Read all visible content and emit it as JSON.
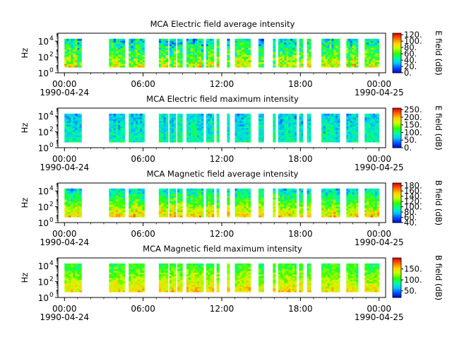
{
  "time_axis": {
    "tick_labels": [
      "00:00",
      "06:00",
      "12:00",
      "18:00",
      "00:00"
    ],
    "tick_hours": [
      0,
      6,
      12,
      18,
      24
    ],
    "date_labels": [
      "1990-04-24",
      "1990-04-25"
    ],
    "minor_tick_hours": [
      1,
      2,
      3,
      4,
      5,
      7,
      8,
      9,
      10,
      11,
      13,
      14,
      15,
      16,
      17,
      19,
      20,
      21,
      22,
      23
    ],
    "start_hour": -0.5,
    "end_hour": 24.5
  },
  "colors": {
    "colormap": [
      "#0000c8",
      "#0050ff",
      "#00c8ff",
      "#00ff96",
      "#32ff00",
      "#c8ff00",
      "#ffd200",
      "#ff6400",
      "#d70000"
    ],
    "axis": "#000000",
    "background": "#ffffff"
  },
  "chart_data": [
    {
      "type": "heatmap",
      "title": "MCA  Electric field average intensity",
      "ylabel": "Hz",
      "y_scale": "log",
      "y_ticks": [
        1,
        100,
        10000
      ],
      "y_tick_labels": [
        "10",
        "10",
        "10"
      ],
      "y_tick_exponents": [
        "0",
        "2",
        "4"
      ],
      "ylim": [
        1,
        100000
      ],
      "data_freq_range": [
        5,
        20000
      ],
      "colorbar": {
        "label": "E field (dB)",
        "range": [
          0,
          125
        ],
        "ticks": [
          0,
          20,
          40,
          60,
          80,
          100,
          120
        ],
        "tick_labels": [
          "0.",
          "20.",
          "40.",
          "60.",
          "80.",
          "100.",
          "120."
        ]
      },
      "data_intervals_hours": [
        [
          0.0,
          1.3
        ],
        [
          3.4,
          4.6
        ],
        [
          4.9,
          6.1
        ],
        [
          7.2,
          7.9
        ],
        [
          8.0,
          8.5
        ],
        [
          8.6,
          9.0
        ],
        [
          9.3,
          10.6
        ],
        [
          10.8,
          11.4
        ],
        [
          11.6,
          11.8
        ],
        [
          12.4,
          12.6
        ],
        [
          13.0,
          14.2
        ],
        [
          14.8,
          15.2
        ],
        [
          15.9,
          16.1
        ],
        [
          16.3,
          17.7
        ],
        [
          17.9,
          18.2
        ],
        [
          18.5,
          18.8
        ],
        [
          19.6,
          21.0
        ],
        [
          21.5,
          22.4
        ],
        [
          22.9,
          24.0
        ]
      ],
      "intensity_profile": {
        "low_freq": 78,
        "high_freq": 38,
        "variation": 22
      }
    },
    {
      "type": "heatmap",
      "title": "MCA  Electric field maximum intensity",
      "ylabel": "Hz",
      "y_scale": "log",
      "y_ticks": [
        1,
        100,
        10000
      ],
      "y_tick_labels": [
        "10",
        "10",
        "10"
      ],
      "y_tick_exponents": [
        "0",
        "2",
        "4"
      ],
      "ylim": [
        1,
        100000
      ],
      "data_freq_range": [
        5,
        20000
      ],
      "colorbar": {
        "label": "E field (dB)",
        "range": [
          0,
          260
        ],
        "ticks": [
          0,
          50,
          100,
          150,
          200,
          250
        ],
        "tick_labels": [
          "0.",
          "50.",
          "100.",
          "150.",
          "200.",
          "250."
        ]
      },
      "data_intervals_hours": [
        [
          0.0,
          1.3
        ],
        [
          3.4,
          4.6
        ],
        [
          4.9,
          6.1
        ],
        [
          7.2,
          7.9
        ],
        [
          8.0,
          8.5
        ],
        [
          8.6,
          9.0
        ],
        [
          9.3,
          10.6
        ],
        [
          10.8,
          11.4
        ],
        [
          11.6,
          11.8
        ],
        [
          12.4,
          12.6
        ],
        [
          13.0,
          14.2
        ],
        [
          14.8,
          15.2
        ],
        [
          15.9,
          16.1
        ],
        [
          16.3,
          17.7
        ],
        [
          17.9,
          18.2
        ],
        [
          18.5,
          18.8
        ],
        [
          19.6,
          21.0
        ],
        [
          21.5,
          22.4
        ],
        [
          22.9,
          24.0
        ]
      ],
      "intensity_profile": {
        "low_freq": 95,
        "high_freq": 70,
        "variation": 25
      }
    },
    {
      "type": "heatmap",
      "title": "MCA  Magnetic field average intensity",
      "ylabel": "Hz",
      "y_scale": "log",
      "y_ticks": [
        1,
        100,
        10000
      ],
      "y_tick_labels": [
        "10",
        "10",
        "10"
      ],
      "y_tick_exponents": [
        "0",
        "2",
        "4"
      ],
      "ylim": [
        1,
        100000
      ],
      "data_freq_range": [
        5,
        20000
      ],
      "colorbar": {
        "label": "B field (dB)",
        "range": [
          40,
          190
        ],
        "ticks": [
          40,
          60,
          80,
          100,
          120,
          140,
          160,
          180
        ],
        "tick_labels": [
          "40.",
          "60.",
          "80.",
          "100.",
          "120.",
          "140.",
          "160.",
          "180."
        ]
      },
      "data_intervals_hours": [
        [
          0.0,
          1.3
        ],
        [
          3.4,
          4.6
        ],
        [
          4.9,
          6.1
        ],
        [
          7.2,
          7.9
        ],
        [
          8.0,
          8.5
        ],
        [
          8.6,
          9.0
        ],
        [
          9.3,
          10.6
        ],
        [
          10.8,
          11.4
        ],
        [
          11.6,
          11.8
        ],
        [
          12.4,
          12.6
        ],
        [
          13.0,
          14.2
        ],
        [
          14.8,
          15.2
        ],
        [
          15.9,
          16.1
        ],
        [
          16.3,
          17.7
        ],
        [
          17.9,
          18.2
        ],
        [
          18.5,
          18.8
        ],
        [
          19.6,
          21.0
        ],
        [
          21.5,
          22.4
        ],
        [
          22.9,
          24.0
        ]
      ],
      "intensity_profile": {
        "low_freq": 150,
        "high_freq": 85,
        "variation": 18
      }
    },
    {
      "type": "heatmap",
      "title": "MCA  Magnetic field maximum intensity",
      "ylabel": "Hz",
      "y_scale": "log",
      "y_ticks": [
        1,
        100,
        10000
      ],
      "y_tick_labels": [
        "10",
        "10",
        "10"
      ],
      "y_tick_exponents": [
        "0",
        "2",
        "4"
      ],
      "ylim": [
        1,
        100000
      ],
      "data_freq_range": [
        5,
        20000
      ],
      "colorbar": {
        "label": "B field (dB)",
        "range": [
          20,
          200
        ],
        "ticks": [
          50,
          100,
          150
        ],
        "tick_labels": [
          "50.",
          "100.",
          "150."
        ]
      },
      "data_intervals_hours": [
        [
          0.0,
          1.3
        ],
        [
          3.4,
          4.6
        ],
        [
          4.9,
          6.1
        ],
        [
          7.2,
          7.9
        ],
        [
          8.0,
          8.5
        ],
        [
          8.6,
          9.0
        ],
        [
          9.3,
          10.6
        ],
        [
          10.8,
          11.4
        ],
        [
          11.6,
          11.8
        ],
        [
          12.4,
          12.6
        ],
        [
          13.0,
          14.2
        ],
        [
          14.8,
          15.2
        ],
        [
          15.9,
          16.1
        ],
        [
          16.3,
          17.7
        ],
        [
          17.9,
          18.2
        ],
        [
          18.5,
          18.8
        ],
        [
          19.6,
          21.0
        ],
        [
          21.5,
          22.4
        ],
        [
          22.9,
          24.0
        ]
      ],
      "intensity_profile": {
        "low_freq": 150,
        "high_freq": 100,
        "variation": 18
      }
    }
  ]
}
